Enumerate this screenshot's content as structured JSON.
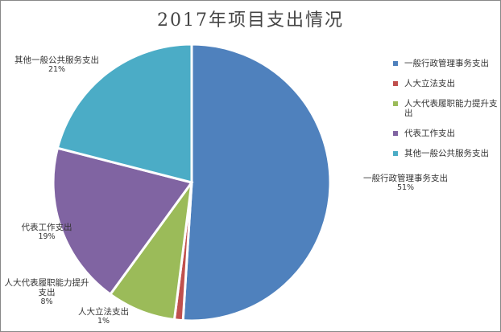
{
  "chart_data": {
    "type": "pie",
    "title": "2017年项目支出情况",
    "categories": [
      "一般行政管理事务支出",
      "人大立法支出",
      "人大代表履职能力提升支出",
      "代表工作支出",
      "其他一般公共服务支出"
    ],
    "values": [
      51,
      1,
      8,
      19,
      21
    ],
    "value_labels": [
      "51%",
      "1%",
      "8%",
      "19%",
      "21%"
    ],
    "colors": [
      "#4f81bd",
      "#c0504d",
      "#9bbb59",
      "#8064a2",
      "#4bacc6"
    ]
  }
}
